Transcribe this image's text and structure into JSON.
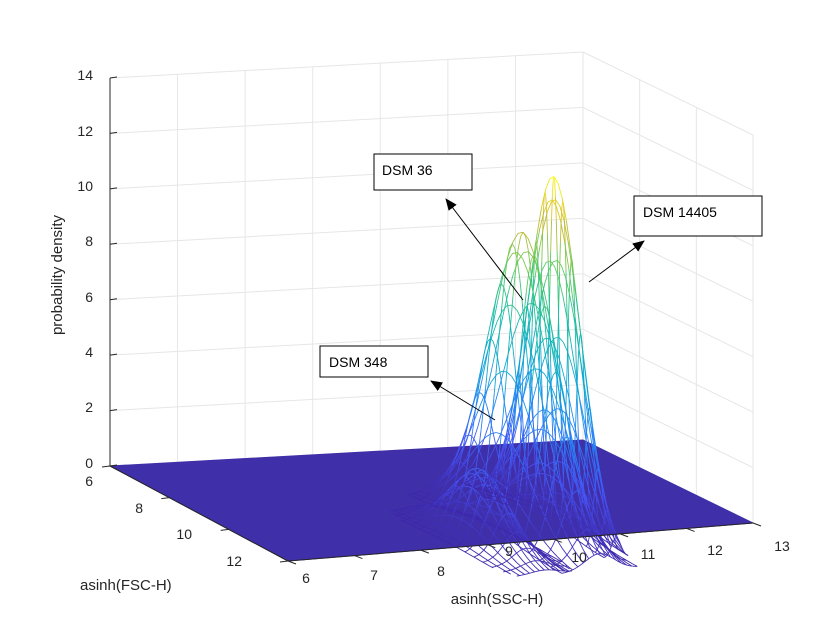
{
  "chart_data": {
    "type": "surface",
    "xlabel": "asinh(SSC-H)",
    "ylabel": "asinh(FSC-H)",
    "zlabel": "probability density",
    "x_ticks": [
      "6",
      "7",
      "8",
      "9",
      "10",
      "11",
      "12",
      "13"
    ],
    "y_ticks": [
      "6",
      "8",
      "10",
      "12"
    ],
    "z_ticks": [
      "0",
      "2",
      "4",
      "6",
      "8",
      "10",
      "12",
      "14"
    ],
    "xlim": [
      6,
      13
    ],
    "ylim": [
      6,
      12
    ],
    "zlim": [
      0,
      14
    ],
    "grid": true,
    "colormap": "parula",
    "floor_color": "#3F2FA8",
    "peaks": [
      {
        "name": "DSM 348",
        "peak_height": 2.6
      },
      {
        "name": "DSM 36",
        "peak_height": 10.8
      },
      {
        "name": "DSM 14405",
        "peak_height": 12.6
      }
    ],
    "annotations": [
      {
        "text": "DSM 36"
      },
      {
        "text": "DSM 14405"
      },
      {
        "text": "DSM 348"
      }
    ]
  }
}
